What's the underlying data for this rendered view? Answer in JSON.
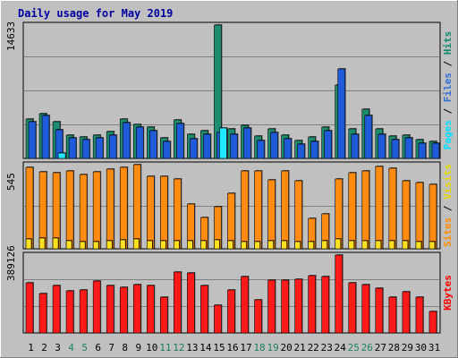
{
  "chart_data": {
    "type": "bar",
    "title": "Daily usage for May 2019",
    "categories": [
      "1",
      "2",
      "3",
      "4",
      "5",
      "6",
      "7",
      "8",
      "9",
      "10",
      "11",
      "12",
      "13",
      "14",
      "15",
      "16",
      "17",
      "18",
      "19",
      "20",
      "21",
      "22",
      "23",
      "24",
      "25",
      "26",
      "27",
      "28",
      "29",
      "30",
      "31"
    ],
    "weekend_days": [
      "4",
      "5",
      "11",
      "12",
      "18",
      "19",
      "25",
      "26"
    ],
    "panels": [
      {
        "id": "hits-files-pages",
        "ymax_label": "14633",
        "ymax": 14633,
        "legend": [
          {
            "text": "Pages",
            "color": "#00e0ff"
          },
          {
            "text": " / ",
            "color": "#000000"
          },
          {
            "text": "Files",
            "color": "#2f6fd6"
          },
          {
            "text": " / ",
            "color": "#000000"
          },
          {
            "text": "Hits",
            "color": "#0f8a6a"
          }
        ],
        "series": [
          {
            "name": "Hits",
            "color": "#1e8c6e",
            "values": [
              4300,
              4900,
              4000,
              2600,
              2400,
              2600,
              2900,
              4300,
              3700,
              3400,
              2300,
              4200,
              2700,
              3000,
              14633,
              3200,
              3600,
              2500,
              3200,
              2600,
              2000,
              2400,
              3400,
              8100,
              3200,
              5400,
              3200,
              2500,
              2600,
              2100,
              1900
            ]
          },
          {
            "name": "Files",
            "color": "#1f5bd8",
            "values": [
              4000,
              4700,
              3100,
              2300,
              2100,
              2300,
              2600,
              3900,
              3400,
              3000,
              1900,
              3800,
              2200,
              2700,
              2800,
              2700,
              3300,
              2000,
              2800,
              2200,
              1600,
              1900,
              3000,
              9800,
              2700,
              4700,
              2700,
              2100,
              2300,
              1700,
              1700
            ]
          },
          {
            "name": "Pages",
            "color": "#20e8ff",
            "values": [
              0,
              0,
              600,
              0,
              0,
              0,
              0,
              0,
              0,
              0,
              0,
              0,
              0,
              0,
              3300,
              0,
              0,
              0,
              0,
              0,
              0,
              0,
              0,
              0,
              0,
              0,
              0,
              0,
              0,
              0,
              0
            ]
          }
        ]
      },
      {
        "id": "visits-sites",
        "ymax_label": "545",
        "ymax": 545,
        "legend": [
          {
            "text": "Sites",
            "color": "#ff8c00"
          },
          {
            "text": " / ",
            "color": "#000000"
          },
          {
            "text": "Visits",
            "color": "#e8d800"
          }
        ],
        "series": [
          {
            "name": "Visits",
            "color": "#ff8c10",
            "values": [
              530,
              500,
              495,
              505,
              480,
              500,
              515,
              525,
              545,
              470,
              470,
              455,
              290,
              205,
              275,
              360,
              505,
              505,
              445,
              505,
              440,
              200,
              225,
              455,
              490,
              505,
              535,
              520,
              440,
              430,
              420
            ]
          },
          {
            "name": "Sites",
            "color": "#ffe020",
            "values": [
              65,
              70,
              70,
              55,
              45,
              45,
              50,
              60,
              65,
              55,
              50,
              50,
              50,
              50,
              60,
              50,
              45,
              45,
              50,
              50,
              45,
              45,
              50,
              65,
              55,
              50,
              55,
              50,
              50,
              45,
              45
            ]
          }
        ]
      },
      {
        "id": "kbytes",
        "ymax_label": "389126",
        "ymax": 389126,
        "legend": [
          {
            "text": "KBytes",
            "color": "#ff0000"
          }
        ],
        "series": [
          {
            "name": "KBytes",
            "color": "#ff1a1a",
            "values": [
              250000,
              196000,
              235000,
              208000,
              215000,
              260000,
              235000,
              230000,
              240000,
              235000,
              180000,
              305000,
              300000,
              235000,
              140000,
              215000,
              280000,
              165000,
              265000,
              262000,
              270000,
              285000,
              280000,
              389126,
              252000,
              240000,
              224000,
              178000,
              205000,
              180000,
              108000
            ]
          }
        ]
      }
    ]
  }
}
